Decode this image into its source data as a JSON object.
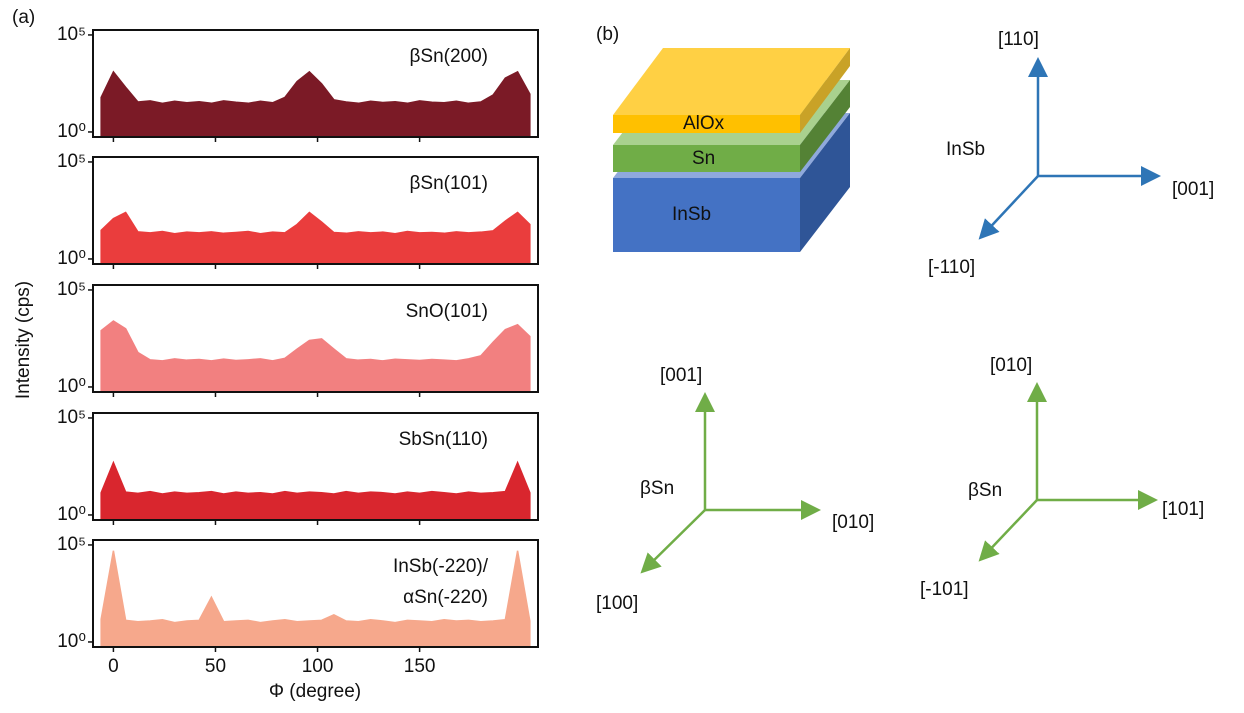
{
  "figure": {
    "panel_a_label": "(a)",
    "panel_b_label": "(b)",
    "y_label": "Intensity (cps)",
    "x_label": "Φ (degree)"
  },
  "chart_data": [
    {
      "type": "area",
      "title_lines": [
        "βSn(200)"
      ],
      "color": "#7b1a26",
      "yscale": "log",
      "xlim": [
        -10,
        208
      ],
      "ylim": [
        0.55,
        180000
      ],
      "xticks": [
        0,
        50,
        100,
        150
      ],
      "yticks": [
        {
          "value": 1,
          "label": "10⁰"
        },
        {
          "value": 100000,
          "label": "10⁵"
        }
      ],
      "x": [
        -6,
        0,
        6,
        12,
        18,
        24,
        30,
        36,
        42,
        48,
        54,
        60,
        66,
        72,
        78,
        84,
        90,
        96,
        102,
        108,
        114,
        120,
        126,
        132,
        138,
        144,
        150,
        156,
        162,
        168,
        174,
        180,
        186,
        192,
        198,
        204
      ],
      "values": [
        60,
        1250,
        200,
        35,
        40,
        30,
        38,
        32,
        36,
        30,
        40,
        34,
        30,
        38,
        32,
        60,
        400,
        1250,
        300,
        45,
        35,
        30,
        38,
        33,
        36,
        30,
        40,
        34,
        32,
        38,
        30,
        35,
        80,
        600,
        1250,
        90
      ]
    },
    {
      "type": "area",
      "title_lines": [
        "βSn(101)"
      ],
      "color": "#ea3d3d",
      "yscale": "log",
      "xlim": [
        -10,
        208
      ],
      "ylim": [
        0.55,
        180000
      ],
      "xticks": [
        0,
        50,
        100,
        150
      ],
      "yticks": [
        {
          "value": 1,
          "label": "10⁰"
        },
        {
          "value": 100000,
          "label": "10⁵"
        }
      ],
      "x": [
        -6,
        0,
        6,
        12,
        18,
        24,
        30,
        36,
        42,
        48,
        54,
        60,
        66,
        72,
        78,
        84,
        90,
        96,
        102,
        108,
        114,
        120,
        126,
        132,
        138,
        144,
        150,
        156,
        162,
        168,
        174,
        180,
        186,
        192,
        198,
        204
      ],
      "values": [
        30,
        120,
        250,
        25,
        22,
        26,
        20,
        24,
        22,
        25,
        21,
        23,
        26,
        20,
        24,
        22,
        60,
        250,
        80,
        23,
        21,
        25,
        22,
        24,
        20,
        26,
        22,
        23,
        21,
        25,
        22,
        24,
        28,
        90,
        250,
        60
      ]
    },
    {
      "type": "area",
      "title_lines": [
        "SnO(101)"
      ],
      "color": "#f28080",
      "yscale": "log",
      "xlim": [
        -10,
        208
      ],
      "ylim": [
        0.55,
        180000
      ],
      "xticks": [
        0,
        50,
        100,
        150
      ],
      "yticks": [
        {
          "value": 1,
          "label": "10⁰"
        },
        {
          "value": 100000,
          "label": "10⁵"
        }
      ],
      "x": [
        -6,
        0,
        6,
        12,
        18,
        24,
        30,
        36,
        42,
        48,
        54,
        60,
        66,
        72,
        78,
        84,
        90,
        96,
        102,
        108,
        114,
        120,
        126,
        132,
        138,
        144,
        150,
        156,
        162,
        168,
        174,
        180,
        186,
        192,
        198,
        204
      ],
      "values": [
        800,
        2500,
        1000,
        60,
        25,
        22,
        28,
        24,
        26,
        22,
        27,
        23,
        25,
        28,
        22,
        30,
        90,
        250,
        300,
        90,
        28,
        24,
        26,
        22,
        27,
        25,
        23,
        26,
        24,
        22,
        28,
        40,
        200,
        900,
        1600,
        400
      ]
    },
    {
      "type": "area",
      "title_lines": [
        "SbSn(110)"
      ],
      "color": "#d9262e",
      "yscale": "log",
      "xlim": [
        -10,
        208
      ],
      "ylim": [
        0.55,
        180000
      ],
      "xticks": [
        0,
        50,
        100,
        150
      ],
      "yticks": [
        {
          "value": 1,
          "label": "10⁰"
        },
        {
          "value": 100000,
          "label": "10⁵"
        }
      ],
      "x": [
        -6,
        0,
        6,
        12,
        18,
        24,
        30,
        36,
        42,
        48,
        54,
        60,
        66,
        72,
        78,
        84,
        90,
        96,
        102,
        108,
        114,
        120,
        126,
        132,
        138,
        144,
        150,
        156,
        162,
        168,
        174,
        180,
        186,
        192,
        198,
        204
      ],
      "values": [
        14,
        500,
        15,
        13,
        16,
        12,
        15,
        13,
        14,
        16,
        12,
        15,
        13,
        14,
        12,
        16,
        13,
        15,
        14,
        12,
        16,
        13,
        15,
        14,
        12,
        15,
        13,
        16,
        14,
        12,
        15,
        13,
        14,
        16,
        500,
        14
      ]
    },
    {
      "type": "area",
      "title_lines": [
        "InSb(-220)/",
        "αSn(-220)"
      ],
      "color": "#f6a88c",
      "yscale": "log",
      "xlim": [
        -10,
        208
      ],
      "ylim": [
        0.55,
        180000
      ],
      "xticks": [
        0,
        50,
        100,
        150
      ],
      "yticks": [
        {
          "value": 1,
          "label": "10⁰"
        },
        {
          "value": 100000,
          "label": "10⁵"
        }
      ],
      "x": [
        -6,
        0,
        6,
        12,
        18,
        24,
        30,
        36,
        42,
        48,
        54,
        60,
        66,
        72,
        78,
        84,
        90,
        96,
        102,
        108,
        114,
        120,
        126,
        132,
        138,
        144,
        150,
        156,
        162,
        168,
        174,
        180,
        186,
        192,
        198,
        204
      ],
      "values": [
        15,
        50000,
        13,
        11,
        12,
        14,
        10,
        12,
        13,
        200,
        11,
        12,
        13,
        10,
        12,
        14,
        11,
        12,
        13,
        25,
        12,
        11,
        14,
        12,
        10,
        13,
        12,
        11,
        14,
        12,
        13,
        11,
        12,
        14,
        50000,
        12
      ]
    }
  ],
  "diagram": {
    "layers": {
      "top": "AlOx",
      "middle": "Sn",
      "bottom": "InSb"
    },
    "axes_insb": {
      "name": "InSb",
      "up": "[110]",
      "right": "[001]",
      "diag": "[-110]"
    },
    "axes_bsn_1": {
      "name": "βSn",
      "up": "[001]",
      "right": "[010]",
      "diag": "[100]"
    },
    "axes_bsn_2": {
      "name": "βSn",
      "up": "[010]",
      "right": "[101]",
      "diag": "[-101]"
    }
  }
}
